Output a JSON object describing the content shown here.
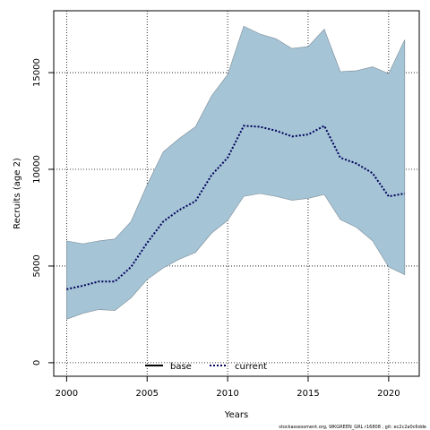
{
  "chart_data": {
    "type": "area",
    "xlabel": "Years",
    "ylabel": "Recruits (age 2)",
    "xlim": [
      1999.2,
      2021.9
    ],
    "ylim": [
      -700,
      18200
    ],
    "x_ticks": [
      2000,
      2005,
      2010,
      2015,
      2020
    ],
    "y_ticks": [
      0,
      5000,
      10000,
      15000
    ],
    "x_tick_labels": [
      "2000",
      "2005",
      "2010",
      "2015",
      "2020"
    ],
    "y_tick_labels": [
      "0",
      "5000",
      "10000",
      "15000"
    ],
    "grid": true,
    "legend_position": "bottom-center",
    "legend": [
      {
        "label": "base",
        "style": "solid"
      },
      {
        "label": "current",
        "style": "dotted"
      }
    ],
    "x": [
      2000,
      2001,
      2002,
      2003,
      2004,
      2005,
      2006,
      2007,
      2008,
      2009,
      2010,
      2011,
      2012,
      2013,
      2014,
      2015,
      2016,
      2017,
      2018,
      2019,
      2020,
      2021
    ],
    "series": [
      {
        "name": "current",
        "values": [
          3800,
          3980,
          4200,
          4200,
          4950,
          6200,
          7300,
          7900,
          8350,
          9700,
          10600,
          12250,
          12200,
          12000,
          11700,
          11800,
          12250,
          10600,
          10300,
          9800,
          8600,
          8750
        ],
        "lower": [
          2250,
          2550,
          2750,
          2700,
          3350,
          4300,
          4900,
          5350,
          5700,
          6700,
          7350,
          8600,
          8750,
          8600,
          8400,
          8500,
          8700,
          7400,
          7000,
          6300,
          4950,
          4550
        ],
        "upper": [
          6300,
          6150,
          6300,
          6400,
          7300,
          9200,
          10900,
          11600,
          12200,
          13800,
          14900,
          17400,
          17000,
          16750,
          16250,
          16350,
          17250,
          15050,
          15100,
          15300,
          14950,
          16700
        ]
      }
    ],
    "colors": {
      "band_fill": "#a5c4d6",
      "band_edge": "#7d8c96",
      "current_line": "#00005a",
      "grid": "#000000",
      "axis": "#000000"
    }
  },
  "footer": "stockassessment.org, WKGREEN_GRL r16808 , git: ec2c2a0c6dde"
}
